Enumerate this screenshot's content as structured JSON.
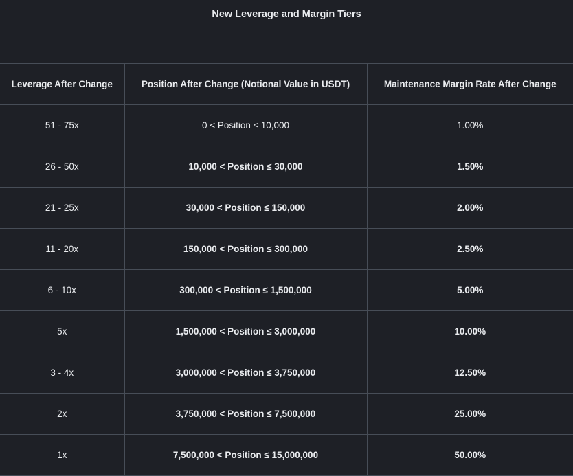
{
  "title": "New Leverage and Margin Tiers",
  "table": {
    "headers": [
      "Leverage After Change",
      "Position After Change (Notional Value in USDT)",
      "Maintenance Margin Rate After Change"
    ],
    "rows": [
      {
        "leverage": "51 - 75x",
        "position": "0 < Position ≤ 10,000",
        "rate": "1.00%",
        "bold": false
      },
      {
        "leverage": "26 - 50x",
        "position": "10,000 < Position ≤ 30,000",
        "rate": "1.50%",
        "bold": true
      },
      {
        "leverage": "21 - 25x",
        "position": "30,000 < Position ≤ 150,000",
        "rate": "2.00%",
        "bold": true
      },
      {
        "leverage": "11 - 20x",
        "position": "150,000 < Position ≤ 300,000",
        "rate": "2.50%",
        "bold": true
      },
      {
        "leverage": "6 - 10x",
        "position": "300,000 < Position ≤ 1,500,000",
        "rate": "5.00%",
        "bold": true
      },
      {
        "leverage": "5x",
        "position": "1,500,000 < Position ≤ 3,000,000",
        "rate": "10.00%",
        "bold": true
      },
      {
        "leverage": "3 - 4x",
        "position": "3,000,000 < Position ≤ 3,750,000",
        "rate": "12.50%",
        "bold": true
      },
      {
        "leverage": "2x",
        "position": "3,750,000 < Position ≤ 7,500,000",
        "rate": "25.00%",
        "bold": true
      },
      {
        "leverage": "1x",
        "position": "7,500,000 < Position ≤ 15,000,000",
        "rate": "50.00%",
        "bold": true
      }
    ]
  }
}
